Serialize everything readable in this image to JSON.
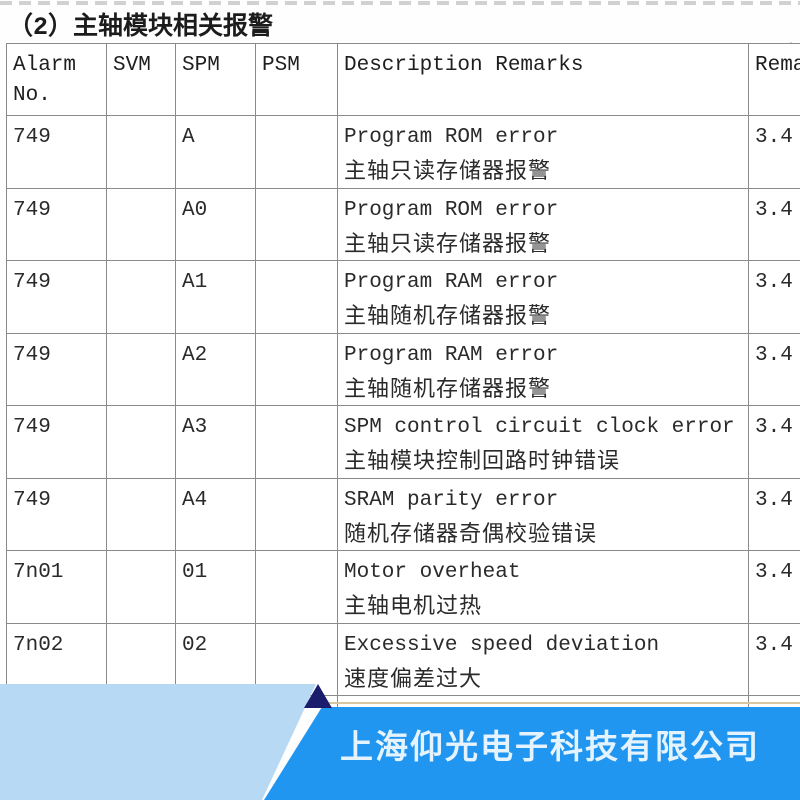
{
  "page": {
    "title": "（2）主轴模块相关报警"
  },
  "table": {
    "headers": {
      "alarm_no": "Alarm No.",
      "svm": "SVM",
      "spm": "SPM",
      "psm": "PSM",
      "description": "Description Remarks",
      "remark": "Rema"
    },
    "rows": [
      {
        "alarm_no": "749",
        "svm": "",
        "spm": "A",
        "psm": "",
        "desc_en": "Program ROM error",
        "desc_zh": "主轴只读存储器报警",
        "remark": "3.4"
      },
      {
        "alarm_no": "749",
        "svm": "",
        "spm": "A0",
        "psm": "",
        "desc_en": "Program ROM error",
        "desc_zh": "主轴只读存储器报警",
        "remark": "3.4"
      },
      {
        "alarm_no": "749",
        "svm": "",
        "spm": "A1",
        "psm": "",
        "desc_en": "Program RAM error",
        "desc_zh": "主轴随机存储器报警",
        "remark": "3.4"
      },
      {
        "alarm_no": "749",
        "svm": "",
        "spm": "A2",
        "psm": "",
        "desc_en": "Program RAM error",
        "desc_zh": "主轴随机存储器报警",
        "remark": "3.4"
      },
      {
        "alarm_no": "749",
        "svm": "",
        "spm": "A3",
        "psm": "",
        "desc_en": "SPM control circuit clock error",
        "desc_zh": "主轴模块控制回路时钟错误",
        "remark": "3.4"
      },
      {
        "alarm_no": "749",
        "svm": "",
        "spm": "A4",
        "psm": "",
        "desc_en": "SRAM parity error",
        "desc_zh": "随机存储器奇偶校验错误",
        "remark": "3.4"
      },
      {
        "alarm_no": "7n01",
        "svm": "",
        "spm": "01",
        "psm": "",
        "desc_en": "Motor overheat",
        "desc_zh": "主轴电机过热",
        "remark": "3.4"
      },
      {
        "alarm_no": "7n02",
        "svm": "",
        "spm": "02",
        "psm": "",
        "desc_en": "Excessive speed deviation",
        "desc_zh": "速度偏差过大",
        "remark": "3.4"
      }
    ]
  },
  "footer": {
    "company": "上海仰光电子科技有限公司",
    "colors": {
      "banner_blue": "#2196f0",
      "light_blue": "#b7d9f3",
      "navy": "#1c1c6e",
      "page_edge_tan": "#d8c79e"
    }
  }
}
